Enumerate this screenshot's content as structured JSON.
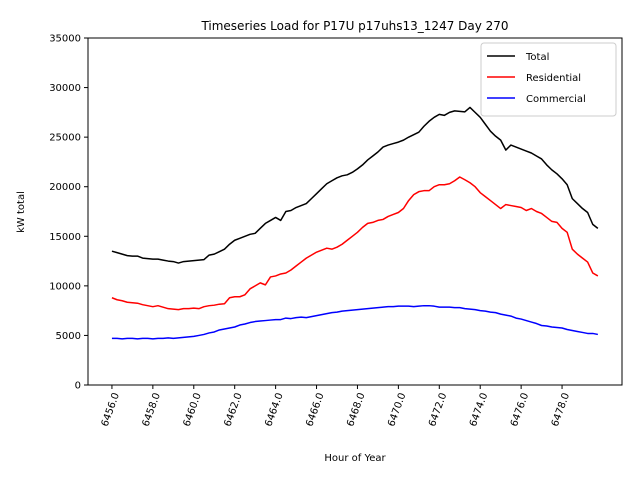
{
  "chart_data": {
    "type": "line",
    "title": "Timeseries Load for P17U p17uhs13_1247  Day 270",
    "xlabel": "Hour of Year",
    "ylabel": "kW total",
    "xlim": [
      6454.83,
      6480.93
    ],
    "ylim": [
      0,
      35000
    ],
    "xticks": [
      6456,
      6458,
      6460,
      6462,
      6464,
      6466,
      6468,
      6470,
      6472,
      6474,
      6476,
      6478
    ],
    "xtick_labels": [
      "6456.0",
      "6458.0",
      "6460.0",
      "6462.0",
      "6464.0",
      "6466.0",
      "6468.0",
      "6470.0",
      "6472.0",
      "6474.0",
      "6476.0",
      "6478.0"
    ],
    "yticks": [
      0,
      5000,
      10000,
      15000,
      20000,
      25000,
      30000,
      35000
    ],
    "ytick_labels": [
      "0",
      "5000",
      "10000",
      "15000",
      "20000",
      "25000",
      "30000",
      "35000"
    ],
    "xtick_rotation_deg": 70,
    "grid": false,
    "legend_position": "top-right",
    "x_start": 6456.0,
    "x_step": 0.25,
    "series": [
      {
        "name": "Total",
        "color": "#000000",
        "values": [
          13500,
          13350,
          13200,
          13050,
          13000,
          13000,
          12800,
          12750,
          12700,
          12700,
          12600,
          12500,
          12450,
          12300,
          12450,
          12500,
          12550,
          12600,
          12650,
          13100,
          13200,
          13450,
          13700,
          14200,
          14600,
          14800,
          15000,
          15200,
          15300,
          15800,
          16300,
          16600,
          16900,
          16600,
          17500,
          17600,
          17900,
          18100,
          18300,
          18800,
          19300,
          19800,
          20300,
          20600,
          20900,
          21100,
          21200,
          21450,
          21800,
          22200,
          22700,
          23100,
          23500,
          24000,
          24200,
          24350,
          24500,
          24700,
          25000,
          25250,
          25500,
          26100,
          26600,
          27000,
          27300,
          27200,
          27500,
          27650,
          27600,
          27550,
          28000,
          27500,
          27000,
          26300,
          25600,
          25100,
          24700,
          23700,
          24200,
          24000,
          23800,
          23600,
          23400,
          23100,
          22800,
          22200,
          21700,
          21300,
          20800,
          20200,
          18800,
          18300,
          17800,
          17400,
          16200,
          15800
        ]
      },
      {
        "name": "Residential",
        "color": "#ff0000",
        "values": [
          8800,
          8600,
          8500,
          8350,
          8300,
          8250,
          8100,
          8000,
          7900,
          8000,
          7850,
          7700,
          7650,
          7600,
          7700,
          7700,
          7750,
          7700,
          7900,
          8000,
          8050,
          8150,
          8200,
          8800,
          8900,
          8900,
          9100,
          9700,
          10000,
          10300,
          10100,
          10900,
          11000,
          11200,
          11300,
          11600,
          12000,
          12400,
          12800,
          13100,
          13400,
          13600,
          13800,
          13700,
          13900,
          14200,
          14600,
          15000,
          15400,
          15900,
          16300,
          16400,
          16600,
          16700,
          17000,
          17200,
          17400,
          17800,
          18600,
          19200,
          19500,
          19600,
          19600,
          20000,
          20200,
          20200,
          20300,
          20600,
          20980,
          20700,
          20400,
          20000,
          19400,
          19000,
          18600,
          18200,
          17800,
          18200,
          18100,
          18000,
          17900,
          17600,
          17800,
          17500,
          17300,
          16900,
          16500,
          16400,
          15800,
          15400,
          13700,
          13200,
          12800,
          12400,
          11300,
          11000
        ]
      },
      {
        "name": "Commercial",
        "color": "#0000ff",
        "values": [
          4700,
          4700,
          4650,
          4700,
          4700,
          4650,
          4700,
          4700,
          4650,
          4700,
          4700,
          4750,
          4700,
          4750,
          4800,
          4850,
          4900,
          5000,
          5100,
          5250,
          5350,
          5550,
          5650,
          5750,
          5850,
          6050,
          6150,
          6300,
          6400,
          6450,
          6500,
          6550,
          6600,
          6600,
          6750,
          6700,
          6800,
          6850,
          6800,
          6900,
          7000,
          7100,
          7200,
          7300,
          7350,
          7450,
          7500,
          7550,
          7600,
          7650,
          7700,
          7750,
          7800,
          7850,
          7900,
          7900,
          7950,
          7950,
          7950,
          7900,
          7950,
          8000,
          8000,
          7950,
          7850,
          7850,
          7850,
          7800,
          7800,
          7700,
          7650,
          7600,
          7500,
          7450,
          7350,
          7300,
          7150,
          7050,
          6950,
          6750,
          6650,
          6500,
          6350,
          6200,
          6000,
          5950,
          5850,
          5800,
          5750,
          5600,
          5500,
          5400,
          5300,
          5200,
          5200,
          5100
        ]
      }
    ]
  }
}
